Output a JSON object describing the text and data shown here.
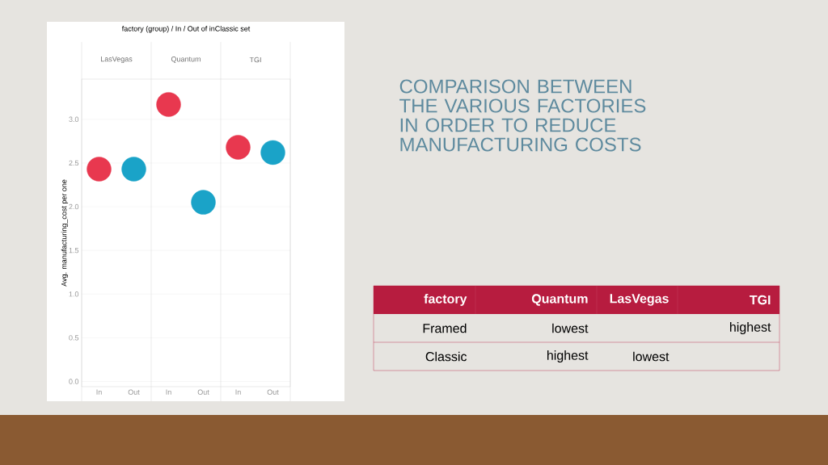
{
  "chart_data": [
    {
      "type": "scatter",
      "title": "factory (group) / In / Out of inClassic set",
      "ylabel": "Avg. manufacturing_cost per one",
      "categories": [
        "In",
        "Out",
        "In",
        "Out",
        "In",
        "Out"
      ],
      "values": [
        2.43,
        2.43,
        3.17,
        2.05,
        2.68,
        2.62
      ],
      "colors": [
        "#e8384f",
        "#1aa3c8",
        "#e8384f",
        "#1aa3c8",
        "#e8384f",
        "#1aa3c8"
      ],
      "annotations": [
        "LasVegas",
        "Quantum",
        "TGI"
      ],
      "marker": "circle",
      "grid": "y",
      "ylim": [
        -0.06,
        3.46
      ],
      "yticks": [
        {
          "value": 0,
          "label": "0.0"
        },
        {
          "value": 0.5,
          "label": "0.5"
        },
        {
          "value": 1,
          "label": "1.0"
        },
        {
          "value": 1.5,
          "label": "1.5"
        },
        {
          "value": 2,
          "label": "2.0"
        },
        {
          "value": 2.5,
          "label": "2.5"
        },
        {
          "value": 3,
          "label": "3.0"
        }
      ]
    },
    {
      "type": "other",
      "title": "COMPARISON BETWEEN THE VARIOUS FACTORIES IN ORDER TO REDUCE MANUFACTURING COSTS",
      "categories": [
        "factory",
        "Quantum",
        "LasVegas",
        "TGI"
      ],
      "y_categories": [
        "Framed",
        "Classic"
      ],
      "cell_labels": [
        [
          "lowest",
          null,
          "highest"
        ],
        [
          "highest",
          "lowest",
          null
        ]
      ]
    }
  ]
}
